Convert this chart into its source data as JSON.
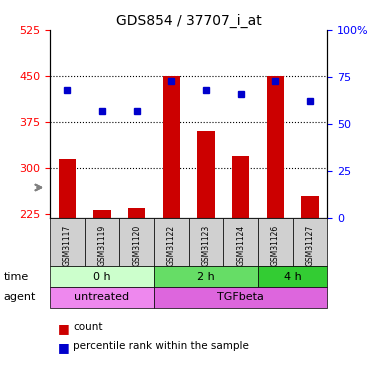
{
  "title": "GDS854 / 37707_i_at",
  "samples": [
    "GSM31117",
    "GSM31119",
    "GSM31120",
    "GSM31122",
    "GSM31123",
    "GSM31124",
    "GSM31126",
    "GSM31127"
  ],
  "counts": [
    315,
    232,
    235,
    450,
    360,
    320,
    450,
    255
  ],
  "percentiles": [
    68,
    57,
    57,
    73,
    68,
    66,
    73,
    62
  ],
  "ylim_left": [
    220,
    525
  ],
  "ylim_right": [
    0,
    100
  ],
  "yticks_left": [
    225,
    300,
    375,
    450,
    525
  ],
  "yticks_right": [
    0,
    25,
    50,
    75,
    100
  ],
  "bar_color": "#cc0000",
  "dot_color": "#0000cc",
  "bar_bottom": 220,
  "dot_scale": 3.05,
  "groups": {
    "time": [
      {
        "label": "0 h",
        "start": 0,
        "end": 3,
        "color": "#ccffcc"
      },
      {
        "label": "2 h",
        "start": 3,
        "end": 6,
        "color": "#66dd66"
      },
      {
        "label": "4 h",
        "start": 6,
        "end": 8,
        "color": "#33cc33"
      }
    ],
    "agent": [
      {
        "label": "untreated",
        "start": 0,
        "end": 3,
        "color": "#ee88ee"
      },
      {
        "label": "TGFbeta",
        "start": 3,
        "end": 8,
        "color": "#dd66dd"
      }
    ]
  },
  "legend_items": [
    {
      "label": "count",
      "color": "#cc0000",
      "marker": "s"
    },
    {
      "label": "percentile rank within the sample",
      "color": "#0000cc",
      "marker": "s"
    }
  ]
}
